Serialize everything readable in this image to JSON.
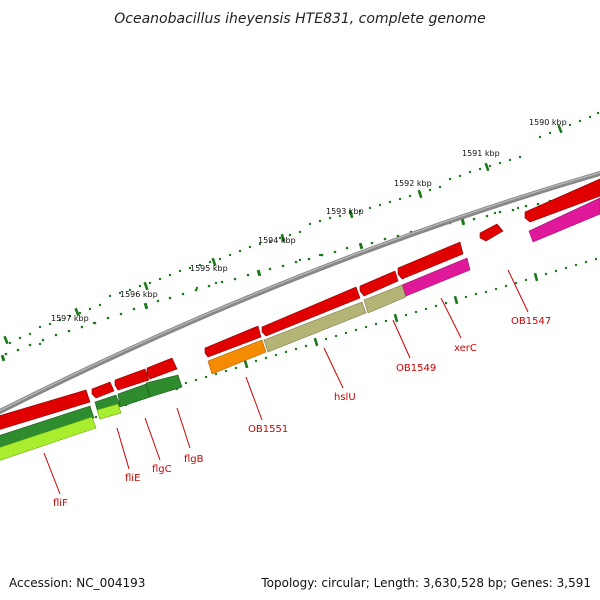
{
  "title": "Oceanobacillus iheyensis HTE831, complete genome",
  "footer": {
    "accession": "Accession: NC_004193",
    "topology": "Topology: circular; Length: 3,630,528 bp; Genes: 3,591"
  },
  "ticks": [
    {
      "label": "1590 kbp"
    },
    {
      "label": "1591 kbp"
    },
    {
      "label": "1592 kbp"
    },
    {
      "label": "1593 kbp"
    },
    {
      "label": "1594 kbp"
    },
    {
      "label": "1595 kbp"
    },
    {
      "label": "1596 kbp"
    },
    {
      "label": "1597 kbp"
    }
  ],
  "genes": [
    {
      "label": "OB1547"
    },
    {
      "label": "xerC"
    },
    {
      "label": "OB1549"
    },
    {
      "label": "hslU"
    },
    {
      "label": "OB1551"
    },
    {
      "label": "flgB"
    },
    {
      "label": "flgC"
    },
    {
      "label": "fliE"
    },
    {
      "label": "fliF"
    }
  ],
  "colors": {
    "backbone": "#888888",
    "cds": "#e00000",
    "magenta": "#e0189a",
    "olive": "#b4b476",
    "orange": "#f58b00",
    "darkgreen": "#2e8b2e",
    "lime": "#a8ee2e",
    "ticks": "#1a7a1a",
    "label": "#cc0000"
  }
}
